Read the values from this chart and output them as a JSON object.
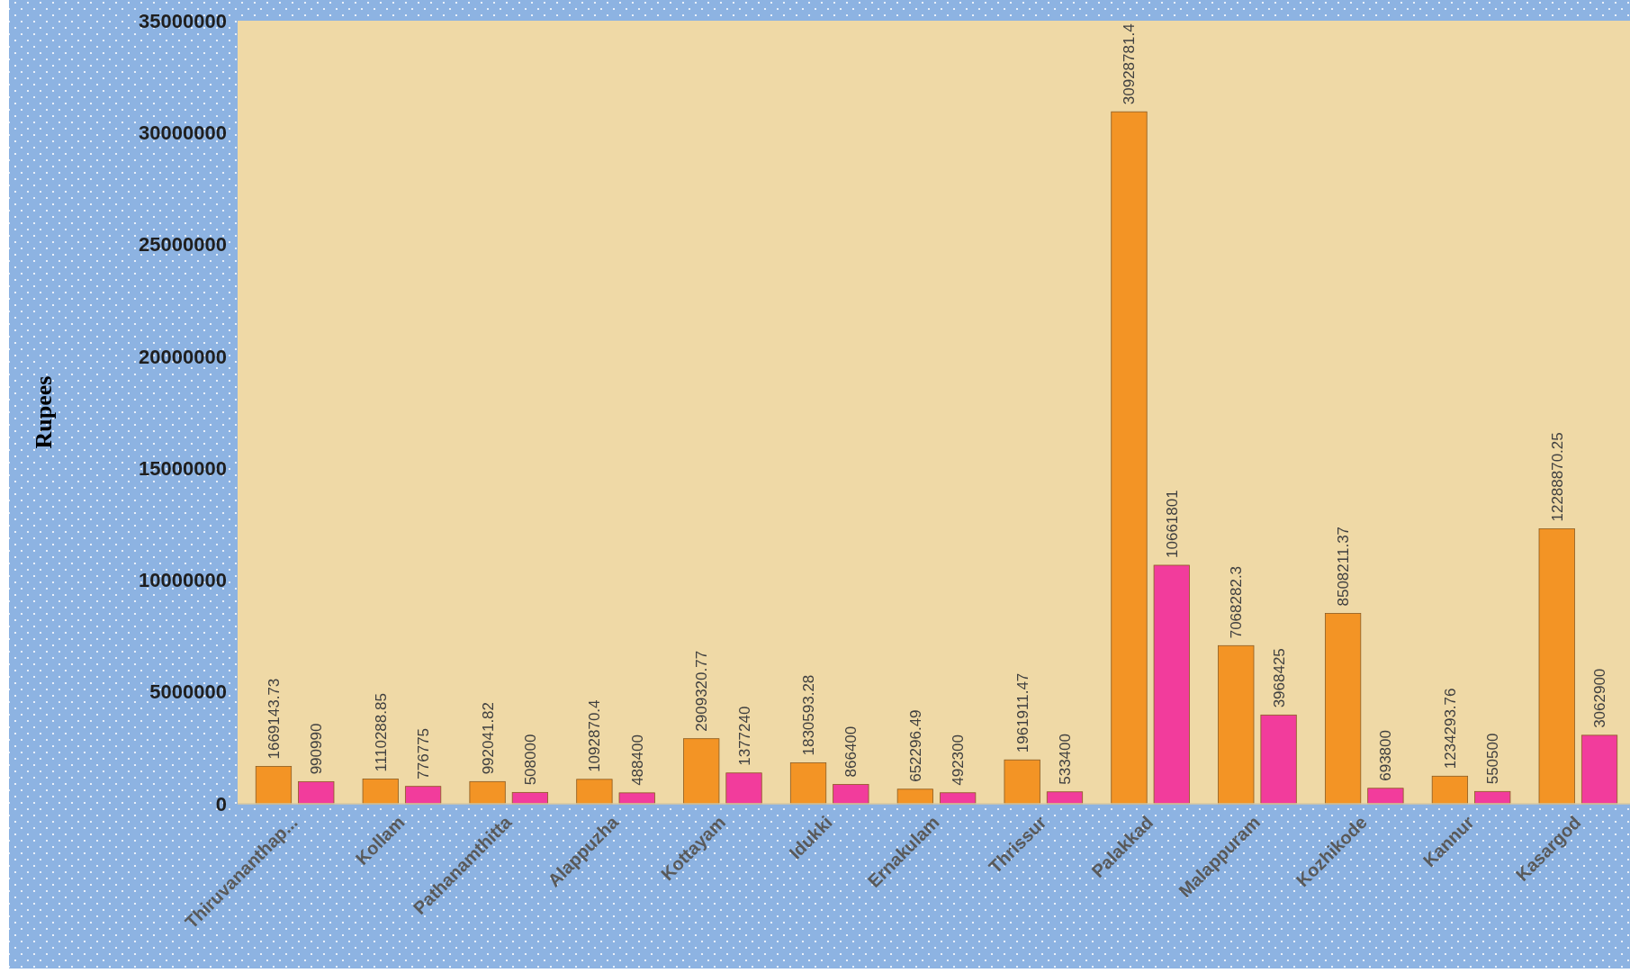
{
  "chart_data": {
    "type": "bar",
    "ylabel": "Rupees",
    "categories": [
      "Thiruvananthap...",
      "Kollam",
      "Pathanamthitta",
      "Alappuzha",
      "Kottayam",
      "Idukki",
      "Ernakulam",
      "Thrissur",
      "Palakkad",
      "Malappuram",
      "Kozhikode",
      "Kannur",
      "Kasargod"
    ],
    "series": [
      {
        "color": "#f39425",
        "values": [
          1669143.73,
          1110288.85,
          992041.82,
          1092870.4,
          2909320.77,
          1830593.28,
          652296.49,
          1961911.47,
          30928781.4,
          7068282.3,
          8508211.37,
          1234293.76,
          12288870.25
        ]
      },
      {
        "color": "#f23c9c",
        "values": [
          990990,
          776775,
          508000,
          488400,
          1377240,
          866400,
          492300,
          533400,
          10661801,
          3968425,
          693800,
          550500,
          3062900
        ]
      }
    ],
    "ylim": [
      0,
      35000000
    ],
    "yticks": [
      0,
      5000000,
      10000000,
      15000000,
      20000000,
      25000000,
      30000000,
      35000000
    ],
    "data_labels": true,
    "grid": false
  }
}
